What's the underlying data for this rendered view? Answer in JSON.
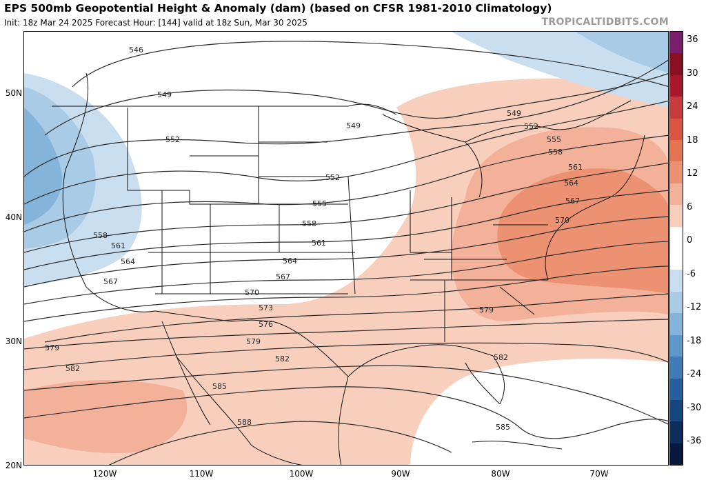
{
  "title": "EPS 500mb Geopotential Height & Anomaly (dam) (based on CFSR 1981-2010 Climatology)",
  "subtitle": "Init: 18z Mar 24 2025   Forecast Hour: [144]   valid at 18z Sun, Mar 30 2025",
  "brand": "TROPICALTIDBITS.COM",
  "lat_labels": [
    "50N",
    "40N",
    "30N",
    "20N"
  ],
  "lon_labels": [
    "120W",
    "110W",
    "100W",
    "90W",
    "80W",
    "70W"
  ],
  "contour_labels": [
    "546",
    "549",
    "549",
    "549",
    "552",
    "552",
    "552",
    "555",
    "555",
    "558",
    "558",
    "558",
    "561",
    "561",
    "561",
    "564",
    "564",
    "564",
    "567",
    "567",
    "567",
    "570",
    "570",
    "573",
    "576",
    "579",
    "579",
    "579",
    "582",
    "582",
    "582",
    "585",
    "585",
    "588"
  ],
  "colorbar": {
    "ticks": [
      "36",
      "30",
      "24",
      "18",
      "12",
      "6",
      "0",
      "-6",
      "-12",
      "-18",
      "-24",
      "-30",
      "-36"
    ],
    "colors": [
      "#7a1f6e",
      "#8b0f23",
      "#a8182a",
      "#c63b3b",
      "#d9553f",
      "#e4734f",
      "#ec9272",
      "#f2b198",
      "#f8cfbd",
      "#ffffff",
      "#ffffff",
      "#c9dff0",
      "#a9cbe6",
      "#85b4da",
      "#5f99cb",
      "#3f7cb7",
      "#265fa0",
      "#17457f",
      "#0d2d5c",
      "#08193d"
    ]
  }
}
